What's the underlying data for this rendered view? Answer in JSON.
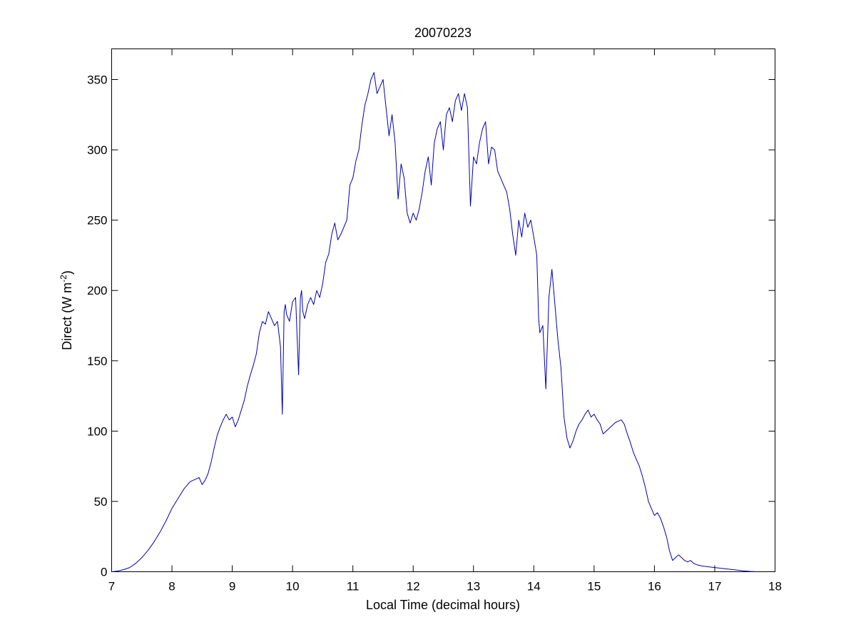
{
  "chart_data": {
    "type": "line",
    "title": "20070223",
    "xlabel": "Local Time (decimal hours)",
    "ylabel_main": "Direct (W m",
    "ylabel_sup": "-2",
    "ylabel_close": ")",
    "xlim": [
      7,
      18
    ],
    "ylim": [
      0,
      370
    ],
    "xticks": [
      "7",
      "8",
      "9",
      "10",
      "11",
      "12",
      "13",
      "14",
      "15",
      "16",
      "17",
      "18"
    ],
    "yticks": [
      "0",
      "50",
      "100",
      "150",
      "200",
      "250",
      "300",
      "350"
    ],
    "grid": false,
    "colors": {
      "series": "#0000b4",
      "axes": "#000000"
    },
    "series": [
      {
        "x": [
          7.0,
          7.1,
          7.2,
          7.3,
          7.4,
          7.5,
          7.6,
          7.7,
          7.8,
          7.9,
          8.0,
          8.1,
          8.2,
          8.3,
          8.4,
          8.45,
          8.5,
          8.55,
          8.6,
          8.65,
          8.7,
          8.75,
          8.8,
          8.85,
          8.9,
          8.95,
          9.0,
          9.05,
          9.1,
          9.15,
          9.2,
          9.25,
          9.3,
          9.35,
          9.4,
          9.45,
          9.5,
          9.55,
          9.6,
          9.65,
          9.7,
          9.75,
          9.8,
          9.83,
          9.86,
          9.88,
          9.9,
          9.95,
          10.0,
          10.05,
          10.1,
          10.13,
          10.15,
          10.17,
          10.2,
          10.25,
          10.3,
          10.35,
          10.4,
          10.45,
          10.5,
          10.55,
          10.6,
          10.65,
          10.7,
          10.75,
          10.8,
          10.85,
          10.9,
          10.95,
          11.0,
          11.05,
          11.1,
          11.15,
          11.2,
          11.25,
          11.3,
          11.35,
          11.4,
          11.45,
          11.5,
          11.55,
          11.6,
          11.65,
          11.7,
          11.75,
          11.8,
          11.85,
          11.9,
          11.95,
          12.0,
          12.05,
          12.1,
          12.15,
          12.2,
          12.25,
          12.3,
          12.35,
          12.4,
          12.45,
          12.5,
          12.55,
          12.6,
          12.65,
          12.7,
          12.75,
          12.8,
          12.85,
          12.9,
          12.95,
          13.0,
          13.05,
          13.1,
          13.15,
          13.2,
          13.25,
          13.3,
          13.35,
          13.4,
          13.45,
          13.5,
          13.55,
          13.6,
          13.65,
          13.7,
          13.75,
          13.8,
          13.85,
          13.9,
          13.95,
          14.0,
          14.05,
          14.08,
          14.1,
          14.15,
          14.2,
          14.25,
          14.3,
          14.35,
          14.4,
          14.45,
          14.5,
          14.55,
          14.6,
          14.65,
          14.7,
          14.75,
          14.8,
          14.85,
          14.9,
          14.95,
          15.0,
          15.05,
          15.1,
          15.15,
          15.2,
          15.25,
          15.3,
          15.35,
          15.4,
          15.45,
          15.5,
          15.55,
          15.6,
          15.65,
          15.7,
          15.75,
          15.8,
          15.85,
          15.9,
          15.95,
          16.0,
          16.05,
          16.1,
          16.15,
          16.2,
          16.25,
          16.3,
          16.35,
          16.4,
          16.45,
          16.5,
          16.55,
          16.6,
          16.65,
          16.7,
          16.75,
          16.8,
          16.9,
          17.0,
          17.1,
          17.2,
          17.3,
          17.4,
          17.5,
          17.6,
          17.7
        ],
        "y": [
          0,
          0.5,
          1.5,
          3,
          6,
          10,
          15,
          21,
          28,
          36,
          45,
          52,
          59,
          64,
          66,
          67,
          62,
          65,
          70,
          78,
          88,
          97,
          103,
          108,
          112,
          108,
          110,
          103,
          108,
          115,
          122,
          132,
          140,
          147,
          155,
          170,
          178,
          176,
          185,
          180,
          175,
          178,
          160,
          112,
          185,
          190,
          183,
          178,
          192,
          195,
          140,
          195,
          200,
          185,
          180,
          190,
          195,
          190,
          200,
          195,
          205,
          220,
          226,
          240,
          248,
          236,
          240,
          245,
          250,
          275,
          280,
          292,
          300,
          318,
          332,
          340,
          350,
          355,
          340,
          345,
          350,
          330,
          310,
          325,
          305,
          265,
          290,
          280,
          255,
          248,
          255,
          250,
          258,
          270,
          285,
          295,
          275,
          305,
          315,
          320,
          300,
          325,
          330,
          320,
          335,
          340,
          328,
          340,
          330,
          260,
          295,
          290,
          305,
          315,
          320,
          290,
          302,
          300,
          285,
          280,
          275,
          270,
          258,
          240,
          225,
          250,
          238,
          255,
          245,
          250,
          238,
          225,
          180,
          170,
          175,
          130,
          195,
          215,
          190,
          165,
          145,
          110,
          95,
          88,
          93,
          100,
          105,
          108,
          112,
          115,
          110,
          112,
          108,
          105,
          98,
          100,
          102,
          104,
          106,
          107,
          108,
          105,
          98,
          92,
          85,
          80,
          75,
          68,
          60,
          50,
          45,
          40,
          42,
          38,
          32,
          25,
          15,
          8,
          10,
          12,
          10,
          8,
          7,
          8,
          6,
          5,
          4.5,
          4,
          3.5,
          3,
          2.5,
          2,
          1.5,
          1,
          0.5,
          0.2,
          0
        ]
      }
    ]
  }
}
